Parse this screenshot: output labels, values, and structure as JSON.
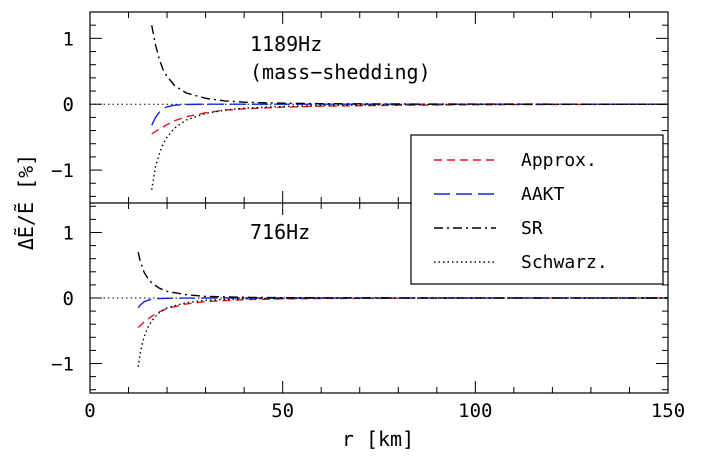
{
  "chart_data": {
    "type": "line",
    "xlabel": "r [km]",
    "ylabel": "ΔẼ/Ẽ [%]",
    "xlim": [
      0,
      150
    ],
    "x_ticks": [
      "0",
      "50",
      "100",
      "150"
    ],
    "legend": {
      "placement": "right",
      "entries": [
        {
          "name": "Approx.",
          "color": "#e8141b",
          "style": "dashed"
        },
        {
          "name": "AAKT",
          "color": "#1428d8",
          "style": "long-dashed"
        },
        {
          "name": "SR",
          "color": "#000000",
          "style": "dash-dot"
        },
        {
          "name": "Schwarz.",
          "color": "#000000",
          "style": "dotted"
        }
      ]
    },
    "panels": [
      {
        "annotation": [
          "1189Hz",
          "(mass−shedding)"
        ],
        "ylim": [
          -1.5,
          1.4
        ],
        "y_ticks": [
          {
            "value": 1,
            "label": "1"
          },
          {
            "value": 0,
            "label": "0"
          },
          {
            "value": -1,
            "label": "−1"
          }
        ],
        "reference_line": 0,
        "series": [
          {
            "name": "Approx.",
            "x": [
              16,
              18,
              20,
              22,
              25,
              30,
              35,
              40,
              50,
              60,
              80,
              100,
              120,
              150
            ],
            "y": [
              -0.45,
              -0.38,
              -0.31,
              -0.25,
              -0.19,
              -0.13,
              -0.09,
              -0.07,
              -0.045,
              -0.03,
              -0.015,
              -0.008,
              -0.004,
              0
            ]
          },
          {
            "name": "AAKT",
            "x": [
              16,
              17,
              18,
              19,
              20,
              22,
              25,
              30,
              40,
              60,
              100,
              150
            ],
            "y": [
              -0.32,
              -0.2,
              -0.12,
              -0.07,
              -0.04,
              -0.015,
              -0.005,
              0,
              0,
              0,
              0,
              0
            ]
          },
          {
            "name": "SR",
            "x": [
              16,
              17,
              18,
              19,
              20,
              22,
              25,
              30,
              35,
              40,
              50,
              60,
              80,
              100,
              150
            ],
            "y": [
              1.2,
              0.9,
              0.68,
              0.52,
              0.42,
              0.28,
              0.17,
              0.09,
              0.05,
              0.03,
              0.015,
              0.008,
              0.003,
              0.001,
              0
            ]
          },
          {
            "name": "Schwarz.",
            "x": [
              16,
              17,
              18,
              19,
              20,
              22,
              25,
              30,
              35,
              40,
              50,
              60,
              80,
              100,
              150
            ],
            "y": [
              -1.3,
              -0.95,
              -0.75,
              -0.6,
              -0.5,
              -0.36,
              -0.24,
              -0.14,
              -0.09,
              -0.06,
              -0.035,
              -0.02,
              -0.008,
              -0.003,
              0
            ]
          }
        ]
      },
      {
        "annotation": [
          "716Hz"
        ],
        "ylim": [
          -1.45,
          1.45
        ],
        "y_ticks": [
          {
            "value": 1,
            "label": "1"
          },
          {
            "value": 0,
            "label": "0"
          },
          {
            "value": -1,
            "label": "−1"
          }
        ],
        "reference_line": 0,
        "series": [
          {
            "name": "Approx.",
            "x": [
              12.5,
              14,
              16,
              18,
              20,
              25,
              30,
              40,
              50,
              60,
              80,
              100,
              150
            ],
            "y": [
              -0.45,
              -0.37,
              -0.28,
              -0.21,
              -0.16,
              -0.09,
              -0.055,
              -0.025,
              -0.013,
              -0.007,
              -0.003,
              -0.001,
              0
            ]
          },
          {
            "name": "AAKT",
            "x": [
              12.5,
              13,
              14,
              15,
              16,
              18,
              20,
              25,
              30,
              50,
              100,
              150
            ],
            "y": [
              -0.15,
              -0.11,
              -0.06,
              -0.035,
              -0.02,
              -0.008,
              -0.004,
              -0.001,
              0,
              0,
              0,
              0
            ]
          },
          {
            "name": "SR",
            "x": [
              12.5,
              13,
              14,
              15,
              16,
              18,
              20,
              25,
              30,
              40,
              50,
              80,
              150
            ],
            "y": [
              0.7,
              0.57,
              0.4,
              0.3,
              0.23,
              0.15,
              0.1,
              0.05,
              0.025,
              0.01,
              0.005,
              0.001,
              0
            ]
          },
          {
            "name": "Schwarz.",
            "x": [
              12.5,
              13,
              14,
              15,
              16,
              18,
              20,
              25,
              30,
              40,
              50,
              80,
              150
            ],
            "y": [
              -1.05,
              -0.85,
              -0.6,
              -0.45,
              -0.35,
              -0.22,
              -0.15,
              -0.07,
              -0.035,
              -0.012,
              -0.005,
              -0.001,
              0
            ]
          }
        ]
      }
    ]
  }
}
